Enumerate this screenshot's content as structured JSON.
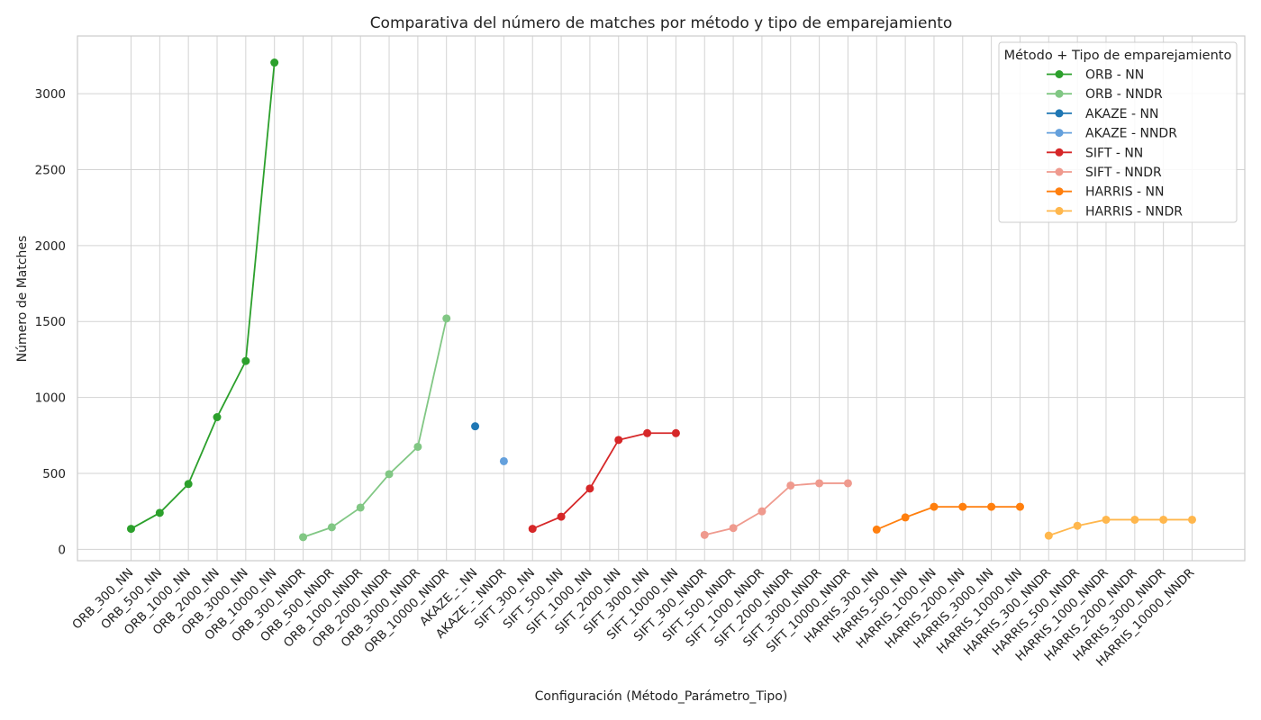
{
  "chart_data": {
    "type": "line",
    "title": "Comparativa del número de matches por método y tipo de emparejamiento",
    "xlabel": "Configuración (Método_Parámetro_Tipo)",
    "ylabel": "Número de Matches",
    "ylim": [
      -75,
      3380
    ],
    "yticks": [
      0,
      500,
      1000,
      1500,
      2000,
      2500,
      3000
    ],
    "grid": true,
    "legend_title": "Método + Tipo de emparejamiento",
    "legend_position": "top-right",
    "categories": [
      "ORB_300_NN",
      "ORB_500_NN",
      "ORB_1000_NN",
      "ORB_2000_NN",
      "ORB_3000_NN",
      "ORB_10000_NN",
      "ORB_300_NNDR",
      "ORB_500_NNDR",
      "ORB_1000_NNDR",
      "ORB_2000_NNDR",
      "ORB_3000_NNDR",
      "ORB_10000_NNDR",
      "AKAZE_-_NN",
      "AKAZE_-_NNDR",
      "SIFT_300_NN",
      "SIFT_500_NN",
      "SIFT_1000_NN",
      "SIFT_2000_NN",
      "SIFT_3000_NN",
      "SIFT_10000_NN",
      "SIFT_300_NNDR",
      "SIFT_500_NNDR",
      "SIFT_1000_NNDR",
      "SIFT_2000_NNDR",
      "SIFT_3000_NNDR",
      "SIFT_10000_NNDR",
      "HARRIS_300_NN",
      "HARRIS_500_NN",
      "HARRIS_1000_NN",
      "HARRIS_2000_NN",
      "HARRIS_3000_NN",
      "HARRIS_10000_NN",
      "HARRIS_300_NNDR",
      "HARRIS_500_NNDR",
      "HARRIS_1000_NNDR",
      "HARRIS_2000_NNDR",
      "HARRIS_3000_NNDR",
      "HARRIS_10000_NNDR"
    ],
    "series": [
      {
        "name": "ORB - NN",
        "color": "#2ca02c",
        "x": [
          "ORB_300_NN",
          "ORB_500_NN",
          "ORB_1000_NN",
          "ORB_2000_NN",
          "ORB_3000_NN",
          "ORB_10000_NN"
        ],
        "values": [
          135,
          240,
          430,
          870,
          1240,
          3205
        ]
      },
      {
        "name": "ORB - NNDR",
        "color": "#81c784",
        "x": [
          "ORB_300_NNDR",
          "ORB_500_NNDR",
          "ORB_1000_NNDR",
          "ORB_2000_NNDR",
          "ORB_3000_NNDR",
          "ORB_10000_NNDR"
        ],
        "values": [
          80,
          145,
          275,
          495,
          675,
          1520
        ]
      },
      {
        "name": "AKAZE - NN",
        "color": "#1f77b4",
        "x": [
          "AKAZE_-_NN"
        ],
        "values": [
          810
        ]
      },
      {
        "name": "AKAZE - NNDR",
        "color": "#64a0dc",
        "x": [
          "AKAZE_-_NNDR"
        ],
        "values": [
          580
        ]
      },
      {
        "name": "SIFT - NN",
        "color": "#d62728",
        "x": [
          "SIFT_300_NN",
          "SIFT_500_NN",
          "SIFT_1000_NN",
          "SIFT_2000_NN",
          "SIFT_3000_NN",
          "SIFT_10000_NN"
        ],
        "values": [
          135,
          215,
          400,
          720,
          765,
          765
        ]
      },
      {
        "name": "SIFT - NNDR",
        "color": "#ef9a8e",
        "x": [
          "SIFT_300_NNDR",
          "SIFT_500_NNDR",
          "SIFT_1000_NNDR",
          "SIFT_2000_NNDR",
          "SIFT_3000_NNDR",
          "SIFT_10000_NNDR"
        ],
        "values": [
          95,
          140,
          250,
          420,
          435,
          435
        ]
      },
      {
        "name": "HARRIS - NN",
        "color": "#ff7f0e",
        "x": [
          "HARRIS_300_NN",
          "HARRIS_500_NN",
          "HARRIS_1000_NN",
          "HARRIS_2000_NN",
          "HARRIS_3000_NN",
          "HARRIS_10000_NN"
        ],
        "values": [
          130,
          210,
          280,
          280,
          280,
          280
        ]
      },
      {
        "name": "HARRIS - NNDR",
        "color": "#ffb74d",
        "x": [
          "HARRIS_300_NNDR",
          "HARRIS_500_NNDR",
          "HARRIS_1000_NNDR",
          "HARRIS_2000_NNDR",
          "HARRIS_3000_NNDR",
          "HARRIS_10000_NNDR"
        ],
        "values": [
          90,
          155,
          195,
          195,
          195,
          195
        ]
      }
    ]
  }
}
